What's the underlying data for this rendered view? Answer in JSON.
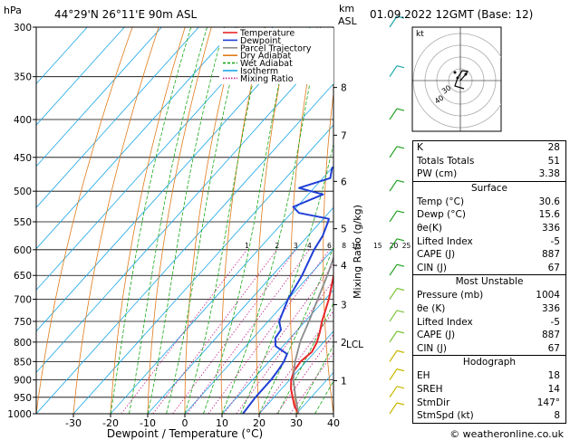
{
  "header": {
    "hpa_label": "hPa",
    "location": "44°29'N  26°11'E  90m  ASL",
    "km_label": "km",
    "asl_label": "ASL",
    "datetime": "01.09.2022  12GMT  (Base: 12)"
  },
  "footer": {
    "credit": "© weatheronline.co.uk"
  },
  "chart_data": {
    "type": "line",
    "chart_kind": "skew-T log-P",
    "xlabel": "Dewpoint / Temperature (°C)",
    "ylabel_right": "Mixing Ratio (g/kg)",
    "xlim": [
      -40,
      40
    ],
    "ylim": [
      1000,
      300
    ],
    "y_scale": "log",
    "x_ticks": [
      -30,
      -20,
      -10,
      0,
      10,
      20,
      30,
      40
    ],
    "pressure_levels": [
      300,
      350,
      400,
      450,
      500,
      550,
      600,
      650,
      700,
      750,
      800,
      850,
      900,
      950,
      1000
    ],
    "km_ticks": [
      {
        "label": "8",
        "p": 362
      },
      {
        "label": "7",
        "p": 420
      },
      {
        "label": "6",
        "p": 485
      },
      {
        "label": "5",
        "p": 562
      },
      {
        "label": "4",
        "p": 630
      },
      {
        "label": "3",
        "p": 712
      },
      {
        "label": "2",
        "p": 800
      },
      {
        "label": "1",
        "p": 902
      }
    ],
    "lcl": {
      "label": "LCL",
      "p": 805
    },
    "mixing_ratio_labels": [
      "1",
      "2",
      "3",
      "4",
      "6",
      "8",
      "10",
      "15",
      "20",
      "25"
    ],
    "mixing_ratio_values": [
      1,
      2,
      3,
      4,
      6,
      8,
      10,
      15,
      20,
      25
    ],
    "legend": [
      {
        "name": "Temperature",
        "color": "#e8262a"
      },
      {
        "name": "Dewpoint",
        "color": "#1f3fd6"
      },
      {
        "name": "Parcel Trajectory",
        "color": "#8c8c8c"
      },
      {
        "name": "Dry Adiabat",
        "color": "#e07a1a"
      },
      {
        "name": "Wet Adiabat",
        "color": "#18a818"
      },
      {
        "name": "Isotherm",
        "color": "#19a6e8"
      },
      {
        "name": "Mixing Ratio",
        "color": "#c4208a"
      }
    ],
    "series": [
      {
        "name": "Temperature",
        "points": [
          [
            1000,
            30.6
          ],
          [
            975,
            27.5
          ],
          [
            950,
            25
          ],
          [
            925,
            22.5
          ],
          [
            900,
            20.4
          ],
          [
            875,
            19
          ],
          [
            850,
            18.5
          ],
          [
            825,
            19.2
          ],
          [
            800,
            18.2
          ],
          [
            775,
            16.5
          ],
          [
            750,
            14.5
          ],
          [
            700,
            11
          ],
          [
            650,
            6.5
          ],
          [
            600,
            2
          ],
          [
            550,
            -3
          ],
          [
            500,
            -8
          ],
          [
            450,
            -13
          ],
          [
            400,
            -20
          ],
          [
            350,
            -27.5
          ],
          [
            300,
            -36
          ]
        ]
      },
      {
        "name": "Dewpoint",
        "points": [
          [
            1000,
            15.6
          ],
          [
            950,
            15
          ],
          [
            900,
            15
          ],
          [
            870,
            14.5
          ],
          [
            850,
            14
          ],
          [
            830,
            13
          ],
          [
            810,
            8
          ],
          [
            790,
            6
          ],
          [
            770,
            5.5
          ],
          [
            750,
            3
          ],
          [
            700,
            0
          ],
          [
            650,
            -2
          ],
          [
            600,
            -5
          ],
          [
            575,
            -6
          ],
          [
            550,
            -8
          ],
          [
            545,
            -8.5
          ],
          [
            535,
            -18
          ],
          [
            525,
            -21
          ],
          [
            505,
            -16
          ],
          [
            500,
            -20
          ],
          [
            495,
            -24
          ],
          [
            480,
            -18
          ],
          [
            465,
            -20
          ],
          [
            450,
            -15
          ],
          [
            430,
            -20
          ],
          [
            415,
            -22
          ],
          [
            400,
            -19
          ],
          [
            380,
            -20
          ],
          [
            350,
            -25
          ],
          [
            330,
            -27
          ],
          [
            300,
            -26
          ]
        ]
      },
      {
        "name": "Parcel Trajectory",
        "points": [
          [
            1000,
            30.6
          ],
          [
            950,
            25.8
          ],
          [
            900,
            21
          ],
          [
            850,
            17
          ],
          [
            805,
            14
          ],
          [
            800,
            13.6
          ],
          [
            750,
            11
          ],
          [
            700,
            8
          ],
          [
            650,
            4.8
          ],
          [
            600,
            1
          ],
          [
            550,
            -3
          ],
          [
            500,
            -8
          ],
          [
            450,
            -13.5
          ],
          [
            400,
            -20
          ],
          [
            350,
            -27
          ],
          [
            300,
            -35
          ]
        ]
      }
    ]
  },
  "hodograph": {
    "title": "kt",
    "ring_labels": [
      "40",
      "30"
    ]
  },
  "indices": {
    "basic": [
      {
        "label": "K",
        "value": "28"
      },
      {
        "label": "Totals Totals",
        "value": "51"
      },
      {
        "label": "PW (cm)",
        "value": "3.38"
      }
    ],
    "surface": {
      "title": "Surface",
      "rows": [
        {
          "label": "Temp (°C)",
          "value": "30.6"
        },
        {
          "label": "Dewp (°C)",
          "value": "15.6"
        },
        {
          "label": "θe(K)",
          "value": "336"
        },
        {
          "label": "Lifted Index",
          "value": "-5"
        },
        {
          "label": "CAPE (J)",
          "value": "887"
        },
        {
          "label": "CIN (J)",
          "value": "67"
        }
      ]
    },
    "most_unstable": {
      "title": "Most Unstable",
      "rows": [
        {
          "label": "Pressure (mb)",
          "value": "1004"
        },
        {
          "label": "θe (K)",
          "value": "336"
        },
        {
          "label": "Lifted Index",
          "value": "-5"
        },
        {
          "label": "CAPE (J)",
          "value": "887"
        },
        {
          "label": "CIN (J)",
          "value": "67"
        }
      ]
    },
    "hodograph": {
      "title": "Hodograph",
      "rows": [
        {
          "label": "EH",
          "value": "18"
        },
        {
          "label": "SREH",
          "value": "14"
        },
        {
          "label": "StmDir",
          "value": "147°"
        },
        {
          "label": "StmSpd (kt)",
          "value": "8"
        }
      ]
    }
  }
}
